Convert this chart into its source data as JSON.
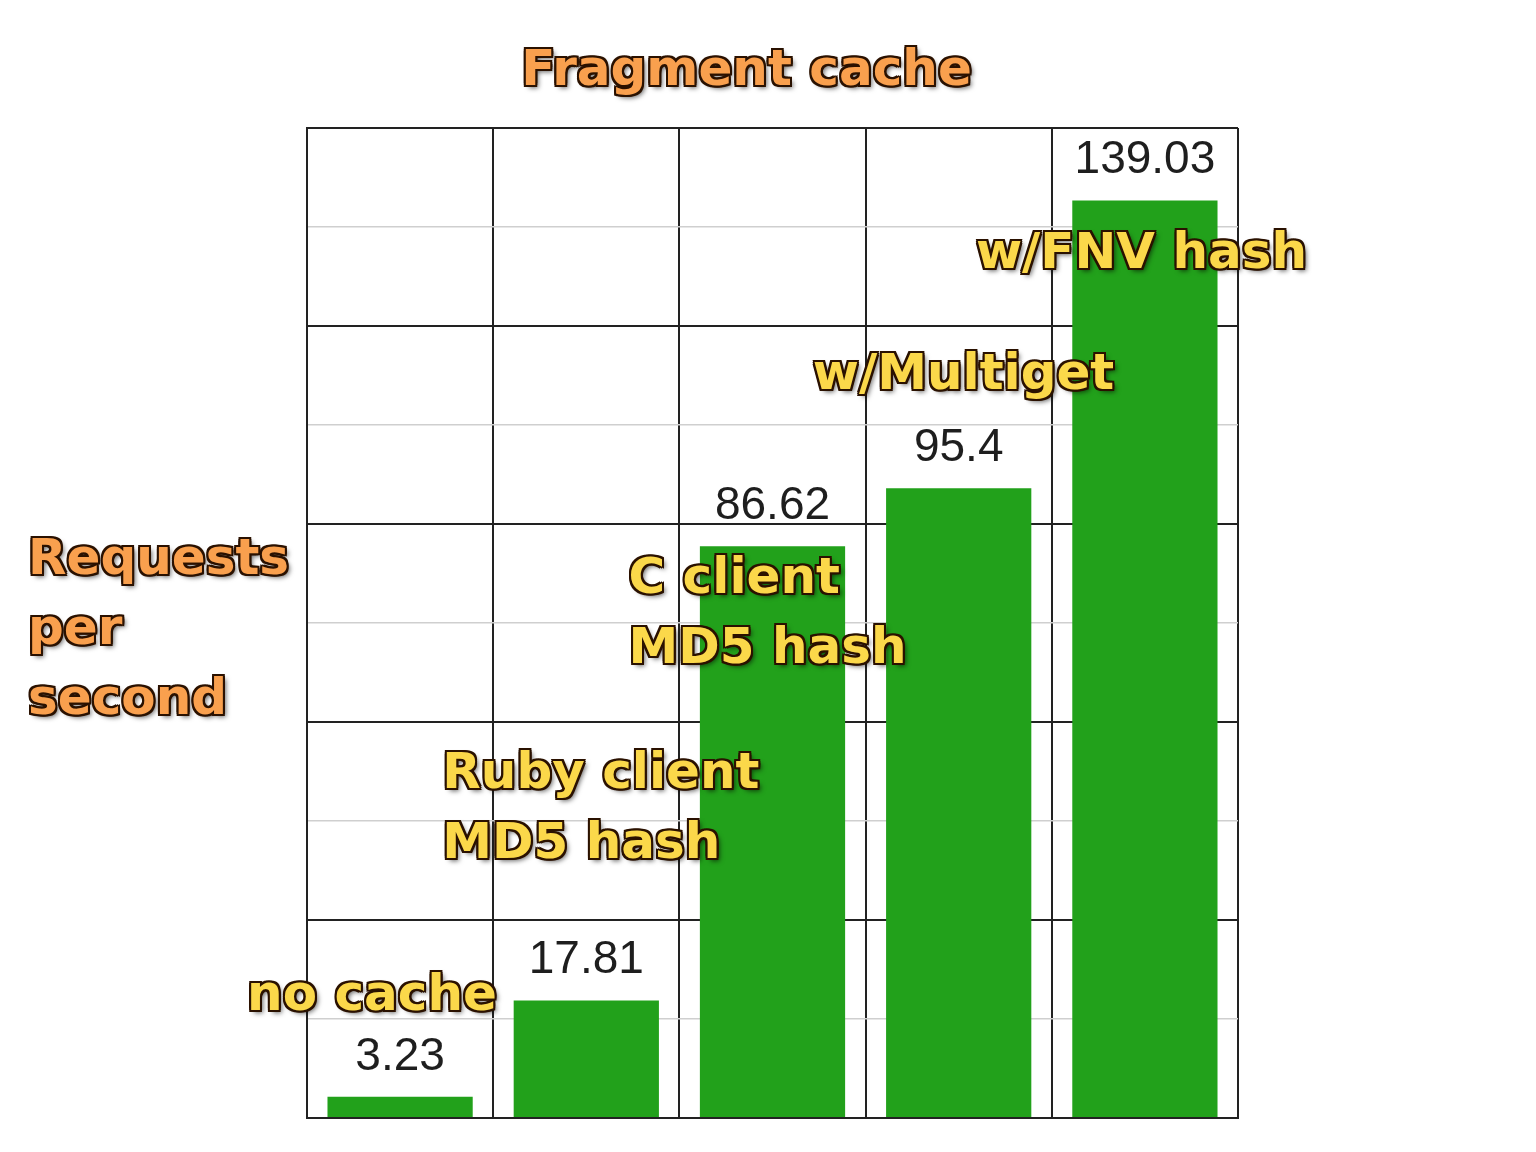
{
  "chart_data": {
    "type": "bar",
    "title": "Fragment cache",
    "ylabel": "Requests per second",
    "categories": [
      "no cache",
      "Ruby client MD5 hash",
      "C client MD5 hash",
      "w/Multiget",
      "w/FNV hash"
    ],
    "values": [
      3.23,
      17.81,
      86.62,
      95.4,
      139.03
    ],
    "color": "#22a11b",
    "ylim": [
      0,
      150
    ],
    "yticks": [
      {
        "value": 0,
        "label": null
      },
      {
        "value": 15,
        "label": null
      },
      {
        "value": 30,
        "label": null
      },
      {
        "value": 45,
        "label": null
      },
      {
        "value": 60,
        "label": null
      },
      {
        "value": 75,
        "label": null
      },
      {
        "value": 90,
        "label": null
      },
      {
        "value": 105,
        "label": null
      },
      {
        "value": 120,
        "label": null
      },
      {
        "value": 135,
        "label": null
      },
      {
        "value": 150,
        "label": null
      }
    ],
    "grid": true,
    "tick_labels": false,
    "data_labels": true
  }
}
